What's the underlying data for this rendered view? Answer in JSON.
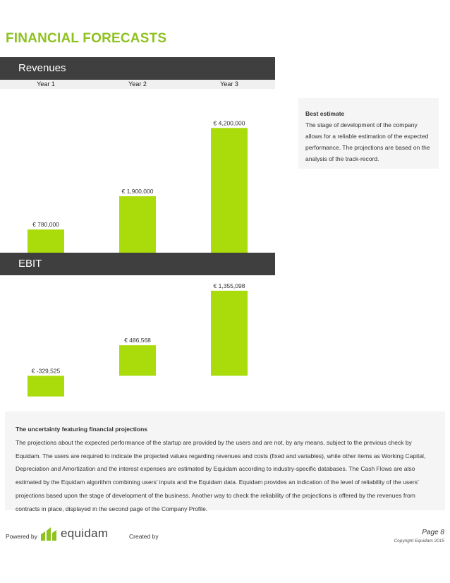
{
  "page_title": "FINANCIAL FORECASTS",
  "revenues": {
    "section_title": "Revenues"
  },
  "ebit": {
    "section_title": "EBIT"
  },
  "years": [
    "Year 1",
    "Year 2",
    "Year 3"
  ],
  "note": {
    "title": "Best estimate",
    "text": "The stage of development of the company allows for a reliable estimation of the expected performance. The projections are based on the analysis of the track-record."
  },
  "info": {
    "title": "The uncertainty featuring financial projections",
    "text": "The projections about the expected performance of the startup are provided by the users and are not, by any means, subject to the previous check by Equidam. The users are required to indicate the projected values regarding revenues and costs (fixed and variables), while other items as Working Capital, Depreciation and Amortization and the interest expenses are estimated by Equidam according to industry-specific databases. The Cash Flows are also estimated by the Equidam algorithm combining users’ inputs and the Equidam data. Equidam provides an indication of the level of reliability of the users’ projections based upon the stage of development of the business. Another way to check the reliability of the projections is offered by the revenues from contracts in place, displayed in the second page of the Company Profile."
  },
  "footer": {
    "powered_by": "Powered by",
    "logo_text": "equidam",
    "created_by": "Created by",
    "page": "Page 8",
    "copyright": "Copyright Equidam 2015"
  },
  "bar_color": "#aadc0b",
  "chart_data": [
    {
      "type": "bar",
      "title": "Revenues",
      "categories": [
        "Year 1",
        "Year 2",
        "Year 3"
      ],
      "values": [
        780000,
        1900000,
        4200000
      ],
      "labels": [
        "€ 780,000",
        "€ 1,900,000",
        "€ 4,200,000"
      ],
      "ylim": [
        0,
        4800000
      ]
    },
    {
      "type": "bar",
      "title": "EBIT",
      "categories": [
        "Year 1",
        "Year 2",
        "Year 3"
      ],
      "values": [
        -329525,
        486568,
        1355098
      ],
      "labels": [
        "€ -329,525",
        "€ 486,568",
        "€ 1,355,098"
      ],
      "ylim": [
        -400000,
        1500000
      ]
    }
  ]
}
